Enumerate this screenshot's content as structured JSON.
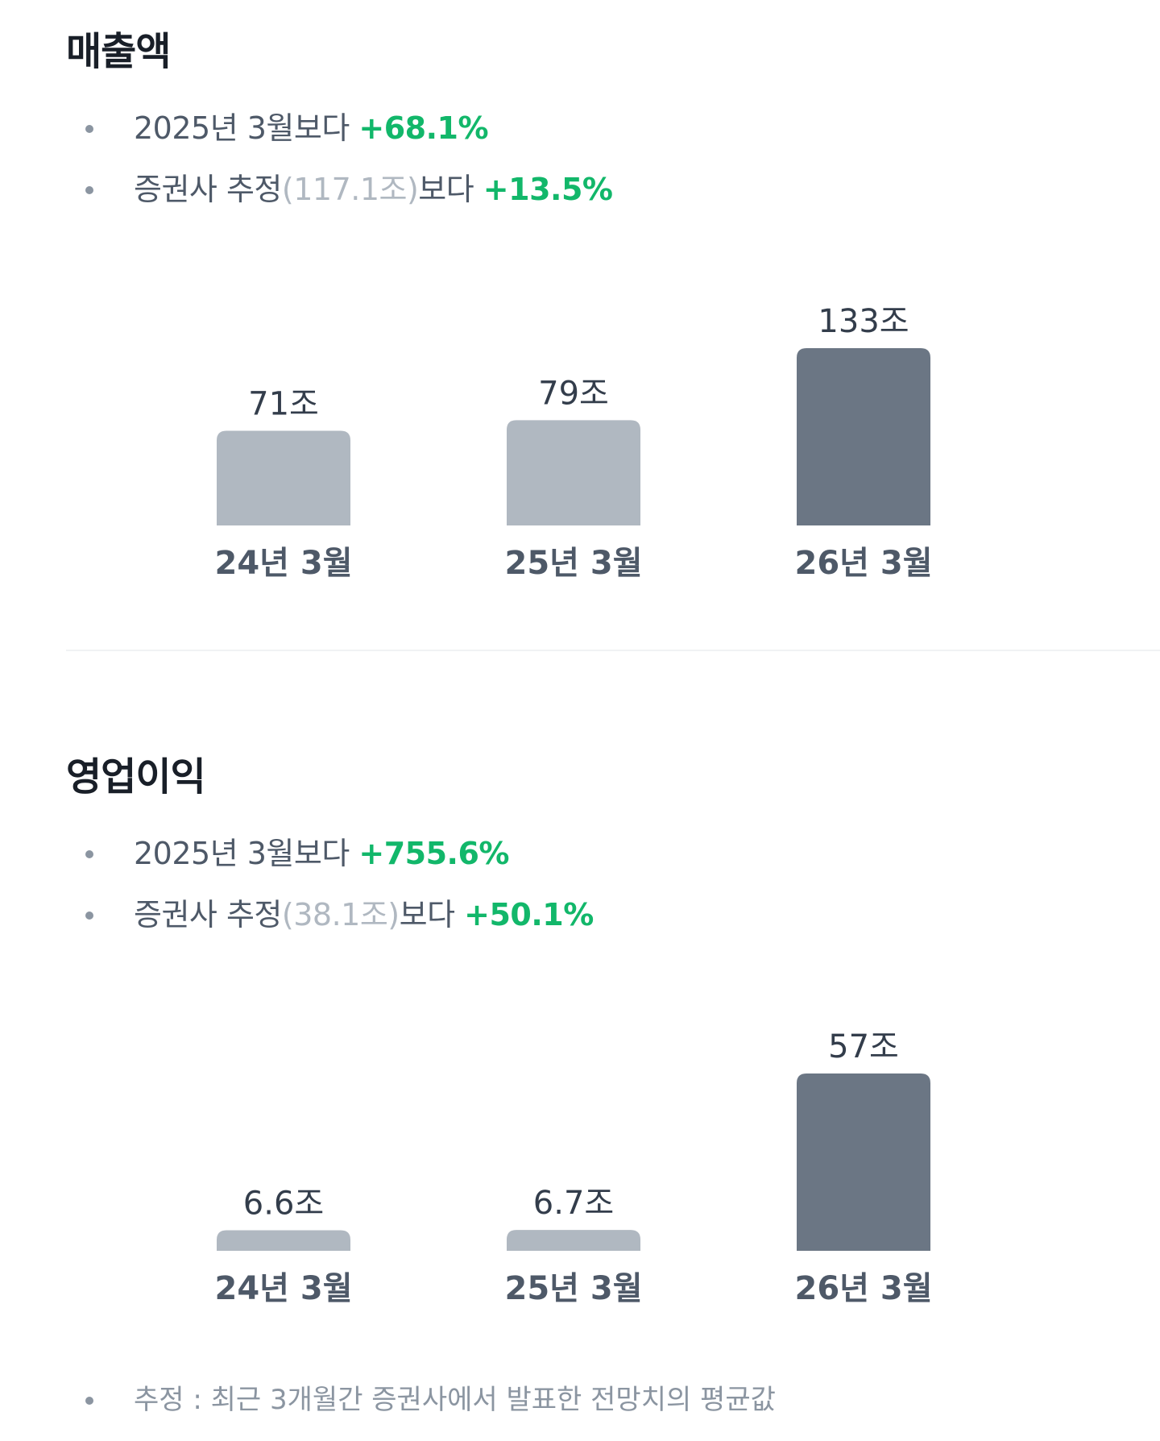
{
  "sections": [
    {
      "title": "매출액",
      "bullets": [
        {
          "prefix": "2025년 3월보다 ",
          "muted": "",
          "suffix": "",
          "change": "+68.1%"
        },
        {
          "prefix": "증권사 추정",
          "muted": "(117.1조)",
          "suffix": "보다 ",
          "change": "+13.5%"
        }
      ]
    },
    {
      "title": "영업이익",
      "bullets": [
        {
          "prefix": "2025년 3월보다 ",
          "muted": "",
          "suffix": "",
          "change": "+755.6%"
        },
        {
          "prefix": "증권사 추정",
          "muted": "(38.1조)",
          "suffix": "보다 ",
          "change": "+50.1%"
        }
      ]
    }
  ],
  "chart_data": [
    {
      "type": "bar",
      "categories": [
        "24년 3월",
        "25년 3월",
        "26년 3월"
      ],
      "values": [
        71,
        79,
        133
      ],
      "value_labels": [
        "71조",
        "79조",
        "133조"
      ],
      "highlight_index": 2,
      "ylim": [
        0,
        133
      ],
      "title": "",
      "xlabel": "",
      "ylabel": "",
      "grid": false
    },
    {
      "type": "bar",
      "categories": [
        "24년 3월",
        "25년 3월",
        "26년 3월"
      ],
      "values": [
        6.6,
        6.7,
        57
      ],
      "value_labels": [
        "6.6조",
        "6.7조",
        "57조"
      ],
      "highlight_index": 2,
      "ylim": [
        0,
        57
      ],
      "title": "",
      "xlabel": "",
      "ylabel": "",
      "grid": false
    }
  ],
  "colors": {
    "bar_default": "#b0b8c1",
    "bar_highlight": "#6b7684",
    "positive": "#12b76a",
    "muted": "#b0b8c1"
  },
  "footnote": "추정 : 최근 3개월간 증권사에서 발표한 전망치의 평균값"
}
